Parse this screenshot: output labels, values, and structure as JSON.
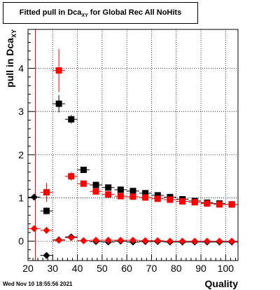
{
  "title": {
    "main": "Fitted pull in Dca",
    "subscript": "XY",
    "suffix": " for Global Rec All NoHits"
  },
  "timestamp": "Wed Nov 10 18:55:56 2021",
  "colors": {
    "black_series": "#000000",
    "red_series": "#ff0000",
    "grid": "#000000",
    "vline": "#cc0000"
  },
  "chart_data": {
    "type": "scatter",
    "title": "Fitted pull in Dca_XY for Global Rec All NoHits",
    "xlabel": "Quality",
    "ylabel": "pull in Dca_XY",
    "xlim": [
      20,
      105
    ],
    "ylim": [
      -0.45,
      4.9
    ],
    "grid": true,
    "xticks": [
      20,
      30,
      40,
      50,
      60,
      70,
      80,
      90,
      100
    ],
    "yticks": [
      0,
      1,
      2,
      3,
      4
    ],
    "vertical_line_x": 23,
    "series": [
      {
        "marker": "square",
        "color": "#000000",
        "points": [
          {
            "x": 27.5,
            "y": 0.7,
            "ey": 0.08
          },
          {
            "x": 32.5,
            "y": 3.18,
            "ey": 0.2
          },
          {
            "x": 37.5,
            "y": 2.82,
            "ey": 0.1
          },
          {
            "x": 42.5,
            "y": 1.65,
            "ey": 0.05
          },
          {
            "x": 47.5,
            "y": 1.3,
            "ey": 0.03
          },
          {
            "x": 52.5,
            "y": 1.24,
            "ey": 0.03
          },
          {
            "x": 57.5,
            "y": 1.19,
            "ey": 0.02
          },
          {
            "x": 62.5,
            "y": 1.16,
            "ey": 0.02
          },
          {
            "x": 67.5,
            "y": 1.11,
            "ey": 0.02
          },
          {
            "x": 72.5,
            "y": 1.06,
            "ey": 0.02
          },
          {
            "x": 77.5,
            "y": 1.02,
            "ey": 0.02
          },
          {
            "x": 82.5,
            "y": 0.97,
            "ey": 0.02
          },
          {
            "x": 87.5,
            "y": 0.93,
            "ey": 0.02
          },
          {
            "x": 92.5,
            "y": 0.89,
            "ey": 0.02
          },
          {
            "x": 97.5,
            "y": 0.87,
            "ey": 0.02
          },
          {
            "x": 102.5,
            "y": 0.85,
            "ey": 0.02
          }
        ]
      },
      {
        "marker": "square",
        "color": "#ff0000",
        "points": [
          {
            "x": 27.5,
            "y": 1.13,
            "ey": 0.22
          },
          {
            "x": 32.5,
            "y": 3.95,
            "ey": 0.5
          },
          {
            "x": 37.5,
            "y": 1.5,
            "ey": 0.1
          },
          {
            "x": 42.5,
            "y": 1.33,
            "ey": 0.04
          },
          {
            "x": 47.5,
            "y": 1.15,
            "ey": 0.03
          },
          {
            "x": 52.5,
            "y": 1.08,
            "ey": 0.03
          },
          {
            "x": 57.5,
            "y": 1.04,
            "ey": 0.02
          },
          {
            "x": 62.5,
            "y": 1.03,
            "ey": 0.02
          },
          {
            "x": 67.5,
            "y": 1.01,
            "ey": 0.02
          },
          {
            "x": 72.5,
            "y": 0.98,
            "ey": 0.02
          },
          {
            "x": 77.5,
            "y": 0.96,
            "ey": 0.02
          },
          {
            "x": 82.5,
            "y": 0.92,
            "ey": 0.02
          },
          {
            "x": 87.5,
            "y": 0.9,
            "ey": 0.02
          },
          {
            "x": 92.5,
            "y": 0.87,
            "ey": 0.02
          },
          {
            "x": 97.5,
            "y": 0.85,
            "ey": 0.02
          },
          {
            "x": 102.5,
            "y": 0.85,
            "ey": 0.02
          }
        ]
      },
      {
        "marker": "diamond",
        "color": "#000000",
        "points": [
          {
            "x": 22.5,
            "y": 1.02,
            "ey": 0.03
          },
          {
            "x": 27.5,
            "y": -0.33,
            "ey": 0.07
          },
          {
            "x": 32.5,
            "y": 0.03,
            "ey": 0.08
          },
          {
            "x": 37.5,
            "y": 0.1,
            "ey": 0.04
          },
          {
            "x": 42.5,
            "y": 0.01,
            "ey": 0.02
          },
          {
            "x": 47.5,
            "y": -0.01,
            "ey": 0.02
          },
          {
            "x": 52.5,
            "y": -0.02,
            "ey": 0.02
          },
          {
            "x": 57.5,
            "y": 0.0,
            "ey": 0.02
          },
          {
            "x": 62.5,
            "y": -0.02,
            "ey": 0.02
          },
          {
            "x": 67.5,
            "y": -0.01,
            "ey": 0.02
          },
          {
            "x": 72.5,
            "y": -0.01,
            "ey": 0.02
          },
          {
            "x": 77.5,
            "y": -0.02,
            "ey": 0.02
          },
          {
            "x": 82.5,
            "y": -0.02,
            "ey": 0.02
          },
          {
            "x": 87.5,
            "y": -0.02,
            "ey": 0.02
          },
          {
            "x": 92.5,
            "y": -0.02,
            "ey": 0.02
          },
          {
            "x": 97.5,
            "y": -0.02,
            "ey": 0.02
          },
          {
            "x": 102.5,
            "y": -0.02,
            "ey": 0.02
          }
        ]
      },
      {
        "marker": "diamond",
        "color": "#ff0000",
        "points": [
          {
            "x": 22.5,
            "y": 0.29,
            "ey": 0.03
          },
          {
            "x": 27.5,
            "y": 0.25,
            "ey": 0.08
          },
          {
            "x": 32.5,
            "y": 0.02,
            "ey": 0.05
          },
          {
            "x": 37.5,
            "y": 0.08,
            "ey": 0.04
          },
          {
            "x": 42.5,
            "y": 0.01,
            "ey": 0.02
          },
          {
            "x": 47.5,
            "y": 0.02,
            "ey": 0.02
          },
          {
            "x": 52.5,
            "y": 0.02,
            "ey": 0.02
          },
          {
            "x": 57.5,
            "y": 0.02,
            "ey": 0.02
          },
          {
            "x": 62.5,
            "y": 0.02,
            "ey": 0.02
          },
          {
            "x": 67.5,
            "y": 0.01,
            "ey": 0.02
          },
          {
            "x": 72.5,
            "y": 0.01,
            "ey": 0.02
          },
          {
            "x": 77.5,
            "y": 0.0,
            "ey": 0.02
          },
          {
            "x": 82.5,
            "y": 0.0,
            "ey": 0.02
          },
          {
            "x": 87.5,
            "y": 0.0,
            "ey": 0.02
          },
          {
            "x": 92.5,
            "y": 0.0,
            "ey": 0.02
          },
          {
            "x": 97.5,
            "y": 0.0,
            "ey": 0.02
          },
          {
            "x": 102.5,
            "y": 0.0,
            "ey": 0.02
          }
        ]
      }
    ]
  }
}
